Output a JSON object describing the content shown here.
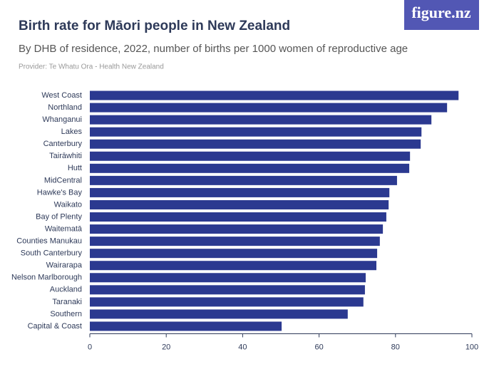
{
  "logo": "figure.nz",
  "chart_data": {
    "type": "barh",
    "title": "Birth rate for Māori people in New Zealand",
    "subtitle": "By DHB of residence, 2022, number of births per 1000 women of reproductive age",
    "source": "Provider: Te Whatu Ora - Health New Zealand",
    "categories": [
      "West Coast",
      "Northland",
      "Whanganui",
      "Lakes",
      "Canterbury",
      "Tairāwhiti",
      "Hutt",
      "MidCentral",
      "Hawke's Bay",
      "Waikato",
      "Bay of Plenty",
      "Waitematā",
      "Counties Manukau",
      "South Canterbury",
      "Wairarapa",
      "Nelson Marlborough",
      "Auckland",
      "Taranaki",
      "Southern",
      "Capital & Coast"
    ],
    "values": [
      96.5,
      93.5,
      89.4,
      86.8,
      86.6,
      83.8,
      83.6,
      80.4,
      78.4,
      78.2,
      77.6,
      76.7,
      75.9,
      75.2,
      75.0,
      72.2,
      72.0,
      71.6,
      67.5,
      50.2
    ],
    "color": "#2b3990",
    "xlim": [
      0,
      100
    ],
    "xticks": [
      0,
      20,
      40,
      60,
      80,
      100
    ]
  }
}
